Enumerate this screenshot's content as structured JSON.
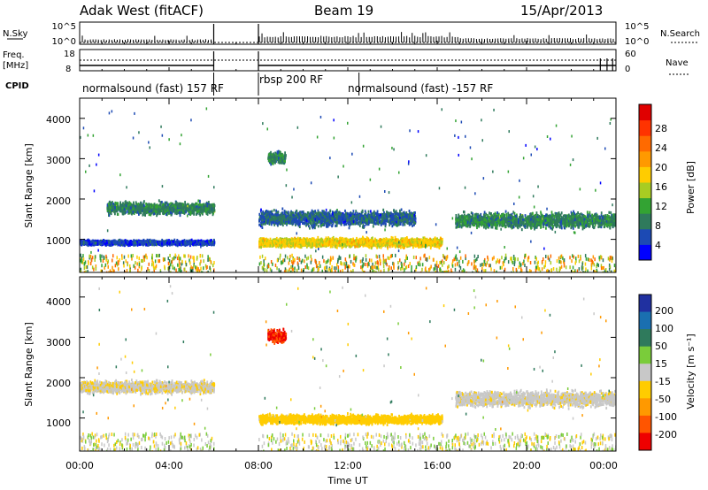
{
  "header": {
    "station": "Adak West (fitACF)",
    "beam": "Beam 19",
    "date": "15/Apr/2013"
  },
  "nsky_panel": {
    "left_label": "N.Sky",
    "left_ticks": [
      "10^5",
      "10^0"
    ],
    "right_ticks": [
      "10^5",
      "10^0"
    ],
    "right_label": "N.Search"
  },
  "freq_panel": {
    "left_label_1": "Freq.",
    "left_label_2": "[MHz]",
    "left_ticks": [
      "18",
      "8"
    ],
    "right_ticks": [
      "60",
      "0"
    ],
    "right_label": "Nave"
  },
  "cpid": {
    "label": "CPID",
    "segments": [
      {
        "text": "normalsound (fast) 157 RF",
        "start_hour": 0,
        "end_hour": 8
      },
      {
        "text": "rbsp 200 RF",
        "start_hour": 8,
        "end_hour": 12.5
      },
      {
        "text": "normalsound (fast) -157 RF",
        "start_hour": 12.5,
        "end_hour": 24
      }
    ]
  },
  "power_panel": {
    "ylabel": "Slant Range [km]",
    "yticks": [
      "4000",
      "3000",
      "2000",
      "1000"
    ],
    "colorbar_label": "Power [dB]",
    "colorbar_ticks": [
      "28",
      "24",
      "20",
      "16",
      "12",
      "8",
      "4"
    ],
    "colors": [
      "#0000ff",
      "#1c4ab4",
      "#2f7a5c",
      "#33a333",
      "#a8cc22",
      "#ffcc00",
      "#ff9900",
      "#ff6a00",
      "#ff3300",
      "#e00000"
    ]
  },
  "velocity_panel": {
    "ylabel": "Slant Range [km]",
    "yticks": [
      "4000",
      "3000",
      "2000",
      "1000"
    ],
    "colorbar_label": "Velocity [m s⁻¹]",
    "colorbar_ticks": [
      "200",
      "100",
      "50",
      "15",
      "-15",
      "-50",
      "-100",
      "-200"
    ],
    "colors": [
      "#2030a0",
      "#1a6fb0",
      "#2f7a5c",
      "#7acc3a",
      "#c8c8c8",
      "#ffcc00",
      "#ff9900",
      "#ff5500",
      "#ee0000"
    ]
  },
  "time_axis": {
    "label": "Time UT",
    "ticks": [
      "00:00",
      "04:00",
      "08:00",
      "12:00",
      "16:00",
      "20:00",
      "00:00"
    ]
  },
  "chart_data": {
    "type": "heatmap",
    "x_unit": "hour UT",
    "xlim": [
      0,
      24
    ],
    "y_unit": "km",
    "ylim": [
      180,
      4500
    ],
    "data_gap_hours": [
      6,
      8
    ],
    "power_regions": [
      {
        "t_start": 0,
        "t_end": 6,
        "range_center": 950,
        "range_spread": 80,
        "power_db": 6
      },
      {
        "t_start": 1.2,
        "t_end": 6,
        "range_center": 1800,
        "range_spread": 200,
        "power_db": 10
      },
      {
        "t_start": 8,
        "t_end": 16.2,
        "range_center": 950,
        "range_spread": 150,
        "power_db": 18
      },
      {
        "t_start": 8,
        "t_end": 15,
        "range_center": 1550,
        "range_spread": 250,
        "power_db": 8
      },
      {
        "t_start": 8.4,
        "t_end": 9.2,
        "range_center": 3050,
        "range_spread": 200,
        "power_db": 10
      },
      {
        "t_start": 16.8,
        "t_end": 24,
        "range_center": 1500,
        "range_spread": 250,
        "power_db": 10
      }
    ],
    "velocity_regions": [
      {
        "t_start": 0,
        "t_end": 6,
        "range_center": 1800,
        "range_spread": 200,
        "velocity": -10
      },
      {
        "t_start": 8,
        "t_end": 16.2,
        "range_center": 1000,
        "range_spread": 150,
        "velocity": -30
      },
      {
        "t_start": 8.4,
        "t_end": 9.2,
        "range_center": 3050,
        "range_spread": 200,
        "velocity": -200
      },
      {
        "t_start": 16.8,
        "t_end": 24,
        "range_center": 1500,
        "range_spread": 250,
        "velocity": -5
      }
    ]
  }
}
